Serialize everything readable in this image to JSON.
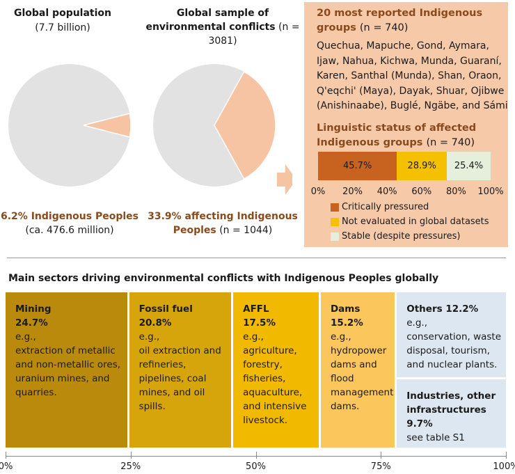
{
  "left_pie": {
    "title": "Global population",
    "subtitle": "(7.7 billion)",
    "caption_bold": "6.2% Indigenous Peoples",
    "caption": "(ca. 476.6 million)"
  },
  "mid_pie": {
    "title_bold": "Global sample of environmental conflicts",
    "title_n": "(n = 3081)",
    "caption_bold": "33.9% affecting Indigenous Peoples",
    "caption_n": "(n = 1044)"
  },
  "panel": {
    "groups_title": "20 most reported Indigenous groups",
    "groups_n": "(n = 740)",
    "groups_text": "Quechua, Mapuche, Gond, Aymara, Ijaw, Nahua, Kichwa, Munda, Guaraní, Karen, Santhal (Munda), Shan, Oraon, Q'eqchi' (Maya), Dayak, Shuar, Ojibwe (Anishinaabe), Buglé, Ngäbe, and Sámi",
    "ling_title": "Linguistic status of affected Indigenous groups",
    "ling_n": "(n = 740)"
  },
  "sectors_title": "Main sectors driving environmental conflicts with Indigenous Peoples globally",
  "colors": {
    "pie_grey": "#e2e2e2",
    "pie_peach": "#f6c4a2",
    "panel": "#f6c9a9",
    "brown": "#8a4a1c"
  },
  "chart_data": [
    {
      "type": "pie",
      "title": "Global population (7.7 billion)",
      "slices": [
        {
          "label": "Indigenous Peoples",
          "value": 6.2,
          "color": "#f6c4a2"
        },
        {
          "label": "Other",
          "value": 93.8,
          "color": "#e2e2e2"
        }
      ]
    },
    {
      "type": "pie",
      "title": "Global sample of environmental conflicts (n = 3081)",
      "slices": [
        {
          "label": "Affecting Indigenous Peoples",
          "value": 33.9,
          "color": "#f6c4a2"
        },
        {
          "label": "Other",
          "value": 66.1,
          "color": "#e2e2e2"
        }
      ]
    },
    {
      "type": "bar",
      "orientation": "horizontal-stacked",
      "title": "Linguistic status of affected Indigenous groups (n = 740)",
      "series": [
        {
          "name": "Critically pressured",
          "value": 45.7,
          "label": "45.7%",
          "color": "#c8621f"
        },
        {
          "name": "Not evaluated in global datasets",
          "value": 28.9,
          "label": "28.9%",
          "color": "#f5c000"
        },
        {
          "name": "Stable (despite pressures)",
          "value": 25.4,
          "label": "25.4%",
          "color": "#e6efdc"
        }
      ],
      "ticks": [
        "0%",
        "20%",
        "40%",
        "60%",
        "80%",
        "100%"
      ],
      "xlim": [
        0,
        100
      ],
      "legend": "bottom"
    },
    {
      "type": "bar",
      "orientation": "horizontal-stacked",
      "title": "Main sectors driving environmental conflicts with Indigenous Peoples globally",
      "series": [
        {
          "name": "Mining",
          "value": 24.7,
          "label": "24.7%",
          "text": [
            "e.g.,",
            "extraction of metallic and non-metallic ores, uranium mines, and quarries."
          ],
          "color": "#b98a0b"
        },
        {
          "name": "Fossil fuel",
          "value": 20.8,
          "label": "20.8%",
          "text": [
            "e.g.,",
            "oil extraction and refineries, pipelines, coal mines, and oil spills."
          ],
          "color": "#d6a40b"
        },
        {
          "name": "AFFL",
          "value": 17.5,
          "label": "17.5%",
          "text": [
            "e.g.,",
            "agriculture, forestry, fisheries, aquaculture, and intensive livestock."
          ],
          "color": "#f1b900"
        },
        {
          "name": "Dams",
          "value": 15.2,
          "label": "15.2%",
          "text": [
            "e.g.,",
            "hydropower dams and flood management dams."
          ],
          "color": "#fbc75c"
        },
        {
          "name": "Others",
          "value": 12.2,
          "label": "Others 12.2%",
          "text": [
            "e.g.,",
            "conservation, waste disposal, tourism, and nuclear plants."
          ],
          "color": "#dde7f1"
        },
        {
          "name": "Industries, other infrastructures",
          "value": 9.7,
          "label": "9.7%",
          "text": [
            "see table S1"
          ],
          "color": "#dde7f1"
        }
      ],
      "ticks": [
        "0%",
        "25%",
        "50%",
        "75%",
        "100%"
      ],
      "xlim": [
        0,
        100
      ]
    }
  ]
}
